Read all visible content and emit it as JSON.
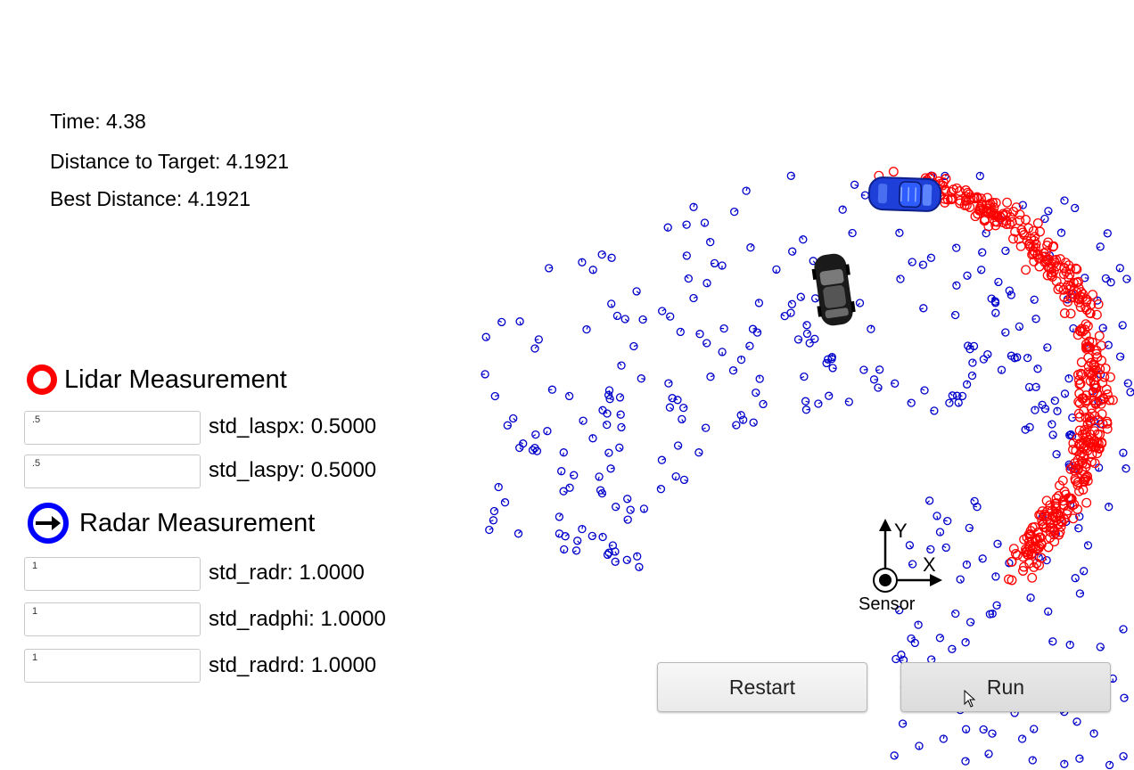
{
  "stats": {
    "time": "Time: 4.38",
    "distance": "Distance to Target: 4.1921",
    "best": "Best Distance: 4.1921"
  },
  "legend": {
    "lidar": "Lidar Measurement",
    "radar": "Radar Measurement"
  },
  "params": [
    {
      "value": ".5",
      "label": "std_laspx: 0.5000"
    },
    {
      "value": ".5",
      "label": "std_laspy: 0.5000"
    },
    {
      "value": "1",
      "label": "std_radr: 1.0000"
    },
    {
      "value": "1",
      "label": "std_radphi: 1.0000"
    },
    {
      "value": "1",
      "label": "std_radrd: 1.0000"
    }
  ],
  "axes": {
    "x": "X",
    "y": "Y",
    "origin": "Sensor"
  },
  "buttons": {
    "restart": "Restart",
    "run": "Run"
  },
  "colors": {
    "lidar": "#ff0000",
    "radar": "#0000cc",
    "car_target": "#1e3fd8",
    "car_tracker": "#1a1a1a"
  }
}
